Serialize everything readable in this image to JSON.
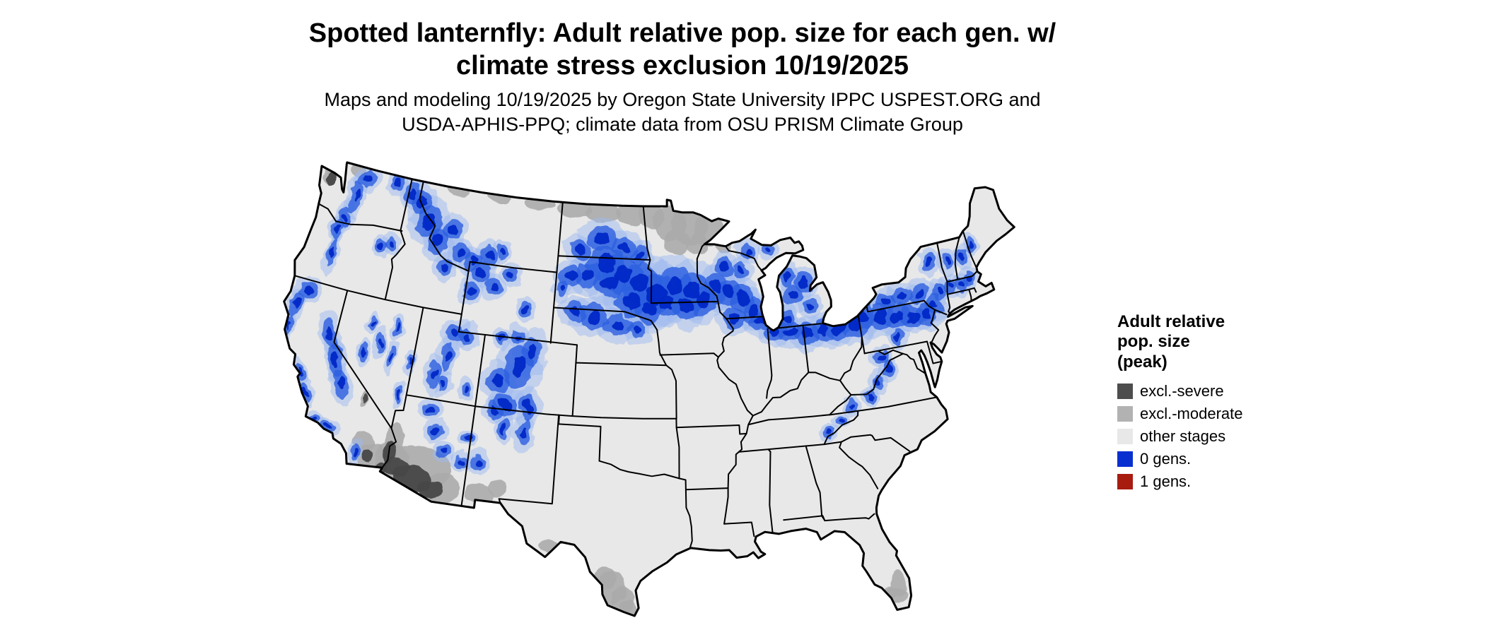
{
  "window": {
    "background": "#ffffff"
  },
  "title": {
    "line1": "Spotted lanternfly: Adult relative pop. size for each gen. w/",
    "line2": "climate stress exclusion 10/19/2025"
  },
  "subtitle": {
    "line1": "Maps and modeling 10/19/2025 by Oregon State University IPPC USPEST.ORG and",
    "line2": "USDA-APHIS-PPQ; climate data from OSU PRISM Climate Group"
  },
  "legend": {
    "title_lines": [
      "Adult relative",
      "pop. size",
      "(peak)"
    ],
    "items": [
      {
        "label": "excl.-severe",
        "color": "#4d4d4d"
      },
      {
        "label": "excl.-moderate",
        "color": "#b2b2b2"
      },
      {
        "label": "other stages",
        "color": "#e8e8e8"
      },
      {
        "label": "0 gens.",
        "color": "#0a2fd1"
      },
      {
        "label": "1 gens.",
        "color": "#a81c0f"
      }
    ]
  },
  "map": {
    "base_color": "#e8e8e8",
    "state_border_color": "#000000",
    "colors": {
      "excl_severe": "#474747",
      "excl_moderate": "#ababab",
      "other_stages": "#e8e8e8",
      "gens0_core": "#0626c6",
      "gens0_mid": "#2c5fe0",
      "gens0_light": "#9db9ef",
      "gens1": "#a81c0f"
    }
  }
}
